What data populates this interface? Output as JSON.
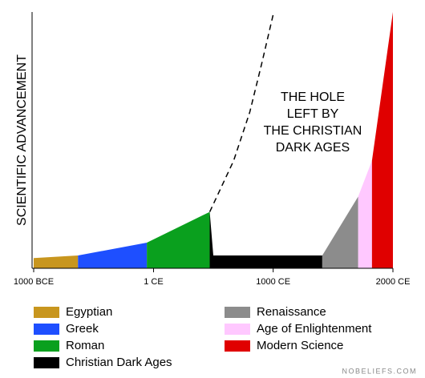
{
  "chart_data": {
    "type": "area",
    "y_label": "SCIENTIFIC ADVANCEMENT",
    "annotation": [
      "THE HOLE",
      "LEFT BY",
      "THE CHRISTIAN",
      "DARK AGES"
    ],
    "watermark": "NOBELIEFS.COM",
    "xlim": [
      -1000,
      2000
    ],
    "ylim": [
      0,
      100
    ],
    "xticks": [
      {
        "value": -1000,
        "label": "1000 BCE"
      },
      {
        "value": 1,
        "label": "1 CE"
      },
      {
        "value": 1000,
        "label": "1000 CE"
      },
      {
        "value": 2000,
        "label": "2000 CE"
      }
    ],
    "series": [
      {
        "name": "Egyptian",
        "color": "#c8961e",
        "x": [
          -1000,
          -630
        ],
        "values": [
          4,
          5
        ]
      },
      {
        "name": "Greek",
        "color": "#1e4fff",
        "x": [
          -630,
          -55
        ],
        "values": [
          5,
          10
        ]
      },
      {
        "name": "Roman",
        "color": "#0aa01e",
        "x": [
          -55,
          470
        ],
        "values": [
          10,
          22
        ]
      },
      {
        "name": "Christian Dark Ages",
        "color": "#000000",
        "x": [
          470,
          500,
          1410
        ],
        "values": [
          22,
          5,
          5
        ]
      },
      {
        "name": "Renaissance",
        "color": "#8c8c8c",
        "x": [
          1410,
          1710
        ],
        "values": [
          5,
          28
        ]
      },
      {
        "name": "Age of Enlightenment",
        "color": "#ffc8ff",
        "x": [
          1710,
          1825
        ],
        "values": [
          28,
          42
        ]
      },
      {
        "name": "Modern Science",
        "color": "#e00000",
        "x": [
          1825,
          2000
        ],
        "values": [
          42,
          100
        ]
      }
    ],
    "projection": {
      "color": "#000000",
      "x": [
        470,
        670,
        805,
        905,
        1005
      ],
      "values": [
        22,
        42,
        61,
        80,
        100
      ]
    }
  }
}
